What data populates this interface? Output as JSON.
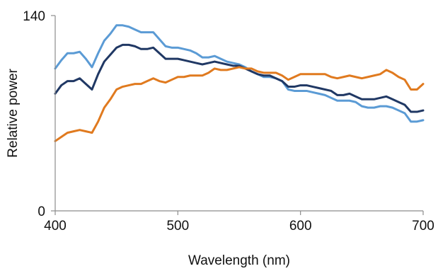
{
  "chart_data": {
    "type": "line",
    "xlabel": "Wavelength (nm)",
    "ylabel": "Relative power",
    "xlim": [
      400,
      700
    ],
    "ylim": [
      0,
      140
    ],
    "x_ticks": [
      400,
      500,
      600,
      700
    ],
    "y_ticks": [
      0,
      140
    ],
    "grid": false,
    "legend": "none",
    "x": [
      400,
      405,
      410,
      415,
      420,
      425,
      430,
      435,
      440,
      445,
      450,
      455,
      460,
      465,
      470,
      475,
      480,
      485,
      490,
      495,
      500,
      505,
      510,
      515,
      520,
      525,
      530,
      535,
      540,
      545,
      550,
      555,
      560,
      565,
      570,
      575,
      580,
      585,
      590,
      595,
      600,
      605,
      610,
      615,
      620,
      625,
      630,
      635,
      640,
      645,
      650,
      655,
      660,
      665,
      670,
      675,
      680,
      685,
      690,
      695,
      700
    ],
    "series": [
      {
        "color": "#5b9bd5",
        "values": [
          102,
          108,
          113,
          113,
          114,
          109,
          103,
          113,
          122,
          127,
          133,
          133,
          132,
          130,
          128,
          128,
          128,
          123,
          118,
          117,
          117,
          116,
          115,
          113,
          110,
          110,
          111,
          109,
          107,
          106,
          105,
          103,
          100,
          98,
          96,
          96,
          95,
          93,
          87,
          86,
          86,
          86,
          85,
          84,
          83,
          81,
          79,
          79,
          79,
          78,
          75,
          74,
          74,
          75,
          75,
          74,
          72,
          70,
          64,
          64,
          65
        ]
      },
      {
        "color": "#203864",
        "values": [
          84,
          90,
          93,
          93,
          95,
          91,
          87,
          98,
          107,
          112,
          117,
          119,
          119,
          118,
          116,
          116,
          117,
          113,
          109,
          109,
          109,
          108,
          107,
          106,
          105,
          106,
          107,
          106,
          105,
          104,
          104,
          102,
          100,
          98,
          97,
          97,
          95,
          93,
          89,
          89,
          90,
          90,
          89,
          88,
          87,
          86,
          83,
          83,
          84,
          82,
          80,
          80,
          80,
          81,
          82,
          80,
          78,
          76,
          71,
          71,
          72
        ]
      },
      {
        "color": "#e07a1f",
        "values": [
          50,
          53,
          56,
          57,
          58,
          57,
          56,
          64,
          74,
          80,
          87,
          89,
          90,
          91,
          91,
          93,
          95,
          93,
          92,
          94,
          96,
          96,
          97,
          97,
          97,
          99,
          102,
          101,
          101,
          102,
          103,
          102,
          102,
          100,
          99,
          99,
          99,
          97,
          94,
          96,
          98,
          98,
          98,
          98,
          98,
          96,
          95,
          96,
          97,
          96,
          95,
          96,
          97,
          98,
          101,
          99,
          96,
          94,
          87,
          87,
          91
        ]
      }
    ]
  }
}
